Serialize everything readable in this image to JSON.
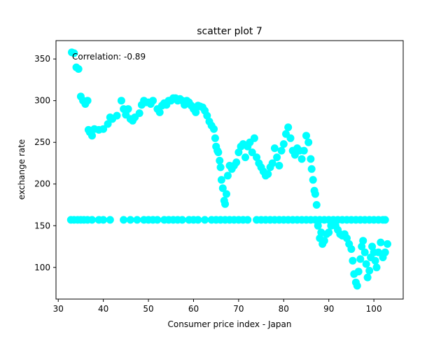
{
  "chart_data": {
    "type": "scatter",
    "title": "scatter plot 7",
    "xlabel": "Consumer price index - Japan",
    "ylabel": "exchange rate",
    "xlim": [
      29.5,
      106.5
    ],
    "ylim": [
      62,
      372
    ],
    "xticks": [
      30,
      40,
      50,
      60,
      70,
      80,
      90,
      100
    ],
    "yticks": [
      100,
      150,
      200,
      250,
      300,
      350
    ],
    "annotation": "Correlation: -0.89",
    "marker_color": "#00ffff",
    "grid": false,
    "legend": "none",
    "series": [
      {
        "points": [
          [
            33,
            358
          ],
          [
            33.5,
            357
          ],
          [
            34,
            340
          ],
          [
            34.5,
            338
          ],
          [
            35,
            305
          ],
          [
            35.5,
            300
          ],
          [
            36,
            296
          ],
          [
            36.5,
            300
          ],
          [
            36.7,
            265
          ],
          [
            37,
            262
          ],
          [
            37.5,
            258
          ],
          [
            38,
            266
          ],
          [
            39,
            265
          ],
          [
            40,
            266
          ],
          [
            41,
            272
          ],
          [
            41.5,
            280
          ],
          [
            42,
            278
          ],
          [
            43,
            282
          ],
          [
            44,
            300
          ],
          [
            44.5,
            290
          ],
          [
            45,
            283
          ],
          [
            45.5,
            290
          ],
          [
            46,
            278
          ],
          [
            46.5,
            276
          ],
          [
            47,
            280
          ],
          [
            48,
            285
          ],
          [
            48.5,
            295
          ],
          [
            49,
            300
          ],
          [
            49.5,
            298
          ],
          [
            50,
            298
          ],
          [
            50.5,
            296
          ],
          [
            51,
            300
          ],
          [
            52,
            290
          ],
          [
            52.5,
            286
          ],
          [
            53,
            294
          ],
          [
            53.5,
            297
          ],
          [
            54,
            295
          ],
          [
            54.5,
            300
          ],
          [
            55,
            300
          ],
          [
            55.5,
            303
          ],
          [
            56,
            303
          ],
          [
            56.5,
            300
          ],
          [
            57,
            302
          ],
          [
            57.5,
            300
          ],
          [
            58,
            295
          ],
          [
            58.5,
            300
          ],
          [
            59,
            298
          ],
          [
            59.5,
            294
          ],
          [
            60,
            290
          ],
          [
            60.5,
            286
          ],
          [
            61,
            294
          ],
          [
            61.5,
            293
          ],
          [
            62,
            292
          ],
          [
            62.5,
            288
          ],
          [
            63,
            282
          ],
          [
            63.5,
            275
          ],
          [
            64,
            270
          ],
          [
            64.5,
            266
          ],
          [
            64.8,
            255
          ],
          [
            65,
            245
          ],
          [
            65.3,
            240
          ],
          [
            65.5,
            238
          ],
          [
            65.8,
            228
          ],
          [
            66,
            220
          ],
          [
            66.2,
            205
          ],
          [
            66.5,
            195
          ],
          [
            66.8,
            180
          ],
          [
            67,
            176
          ],
          [
            67.3,
            188
          ],
          [
            67.6,
            210
          ],
          [
            68,
            222
          ],
          [
            68.5,
            218
          ],
          [
            69,
            222
          ],
          [
            69.5,
            226
          ],
          [
            70,
            238
          ],
          [
            70.5,
            245
          ],
          [
            71,
            248
          ],
          [
            71.5,
            232
          ],
          [
            72,
            245
          ],
          [
            72.5,
            250
          ],
          [
            73,
            238
          ],
          [
            73.5,
            255
          ],
          [
            74,
            232
          ],
          [
            74.5,
            225
          ],
          [
            75,
            220
          ],
          [
            75.5,
            215
          ],
          [
            76,
            210
          ],
          [
            76.5,
            212
          ],
          [
            77,
            220
          ],
          [
            77.5,
            225
          ],
          [
            78,
            243
          ],
          [
            78.5,
            232
          ],
          [
            79,
            222
          ],
          [
            79.5,
            240
          ],
          [
            80,
            248
          ],
          [
            80.5,
            260
          ],
          [
            81,
            268
          ],
          [
            81.5,
            255
          ],
          [
            82,
            240
          ],
          [
            82.5,
            235
          ],
          [
            83,
            243
          ],
          [
            83.5,
            240
          ],
          [
            84,
            230
          ],
          [
            84.5,
            240
          ],
          [
            85,
            258
          ],
          [
            85.5,
            250
          ],
          [
            86,
            230
          ],
          [
            86.2,
            218
          ],
          [
            86.5,
            205
          ],
          [
            86.8,
            192
          ],
          [
            87,
            188
          ],
          [
            87.3,
            175
          ],
          [
            87.6,
            150
          ],
          [
            88,
            135
          ],
          [
            88.3,
            142
          ],
          [
            88.6,
            128
          ],
          [
            89,
            132
          ],
          [
            89.5,
            140
          ],
          [
            90,
            142
          ],
          [
            90.5,
            150
          ],
          [
            91,
            155
          ],
          [
            91.5,
            150
          ],
          [
            92,
            145
          ],
          [
            92.5,
            140
          ],
          [
            93,
            138
          ],
          [
            93.5,
            140
          ],
          [
            94,
            135
          ],
          [
            94.5,
            128
          ],
          [
            95,
            122
          ],
          [
            95.3,
            108
          ],
          [
            95.6,
            92
          ],
          [
            96,
            82
          ],
          [
            96.3,
            78
          ],
          [
            96.6,
            95
          ],
          [
            97,
            110
          ],
          [
            97.3,
            125
          ],
          [
            97.6,
            132
          ],
          [
            98,
            118
          ],
          [
            98.3,
            104
          ],
          [
            98.6,
            88
          ],
          [
            99,
            96
          ],
          [
            99.3,
            112
          ],
          [
            99.6,
            125
          ],
          [
            100,
            118
          ],
          [
            100.3,
            108
          ],
          [
            100.6,
            100
          ],
          [
            101,
            118
          ],
          [
            101.5,
            130
          ],
          [
            102,
            112
          ],
          [
            102.5,
            118
          ],
          [
            103,
            128
          ],
          [
            32.8,
            157
          ],
          [
            33.5,
            157
          ],
          [
            34.3,
            157
          ],
          [
            35,
            157
          ],
          [
            35.7,
            157
          ],
          [
            36.5,
            157
          ],
          [
            37.5,
            157
          ],
          [
            39,
            157
          ],
          [
            40,
            157
          ],
          [
            41.5,
            157
          ],
          [
            44.5,
            157
          ],
          [
            46,
            157
          ],
          [
            47.5,
            157
          ],
          [
            49,
            157
          ],
          [
            50,
            157
          ],
          [
            51,
            157
          ],
          [
            52,
            157
          ],
          [
            53.5,
            157
          ],
          [
            54.5,
            157
          ],
          [
            55.5,
            157
          ],
          [
            56.5,
            157
          ],
          [
            57.5,
            157
          ],
          [
            59,
            157
          ],
          [
            60,
            157
          ],
          [
            61,
            157
          ],
          [
            62.5,
            157
          ],
          [
            64,
            157
          ],
          [
            65,
            157
          ],
          [
            66,
            157
          ],
          [
            67,
            157
          ],
          [
            68,
            157
          ],
          [
            69,
            157
          ],
          [
            70,
            157
          ],
          [
            71,
            157
          ],
          [
            72,
            157
          ],
          [
            74,
            157
          ],
          [
            75,
            157
          ],
          [
            76,
            157
          ],
          [
            77,
            157
          ],
          [
            78,
            157
          ],
          [
            79,
            157
          ],
          [
            80,
            157
          ],
          [
            81,
            157
          ],
          [
            82,
            157
          ],
          [
            83,
            157
          ],
          [
            84,
            157
          ],
          [
            85,
            157
          ],
          [
            86,
            157
          ],
          [
            87,
            157
          ],
          [
            88,
            157
          ],
          [
            89,
            157
          ],
          [
            90,
            157
          ],
          [
            91,
            157
          ],
          [
            92,
            157
          ],
          [
            93,
            157
          ],
          [
            94,
            157
          ],
          [
            95,
            157
          ],
          [
            96,
            157
          ],
          [
            97,
            157
          ],
          [
            98,
            157
          ],
          [
            99,
            157
          ],
          [
            100,
            157
          ],
          [
            101,
            157
          ],
          [
            102,
            157
          ],
          [
            102.5,
            157
          ]
        ]
      }
    ]
  }
}
